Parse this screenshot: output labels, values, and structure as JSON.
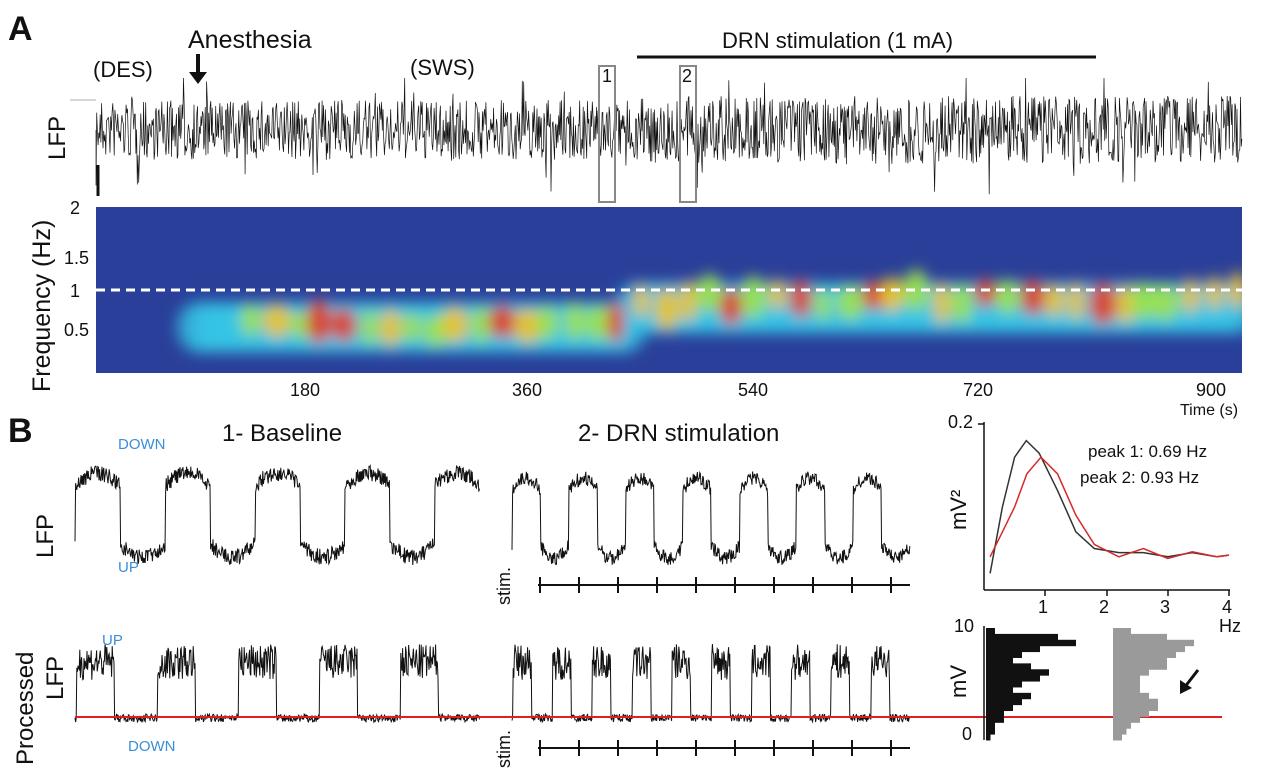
{
  "panel_a": {
    "letter": "A",
    "des_label": "(DES)",
    "anesthesia_label": "Anesthesia",
    "sws_label": "(SWS)",
    "stim_label": "DRN stimulation (1 mA)",
    "box1_label": "1",
    "box2_label": "2",
    "lfp_label": "LFP",
    "freq_label": "Frequency (Hz)",
    "y_ticks": [
      "2",
      "1.5",
      "1",
      "0.5"
    ],
    "x_ticks": [
      "180",
      "360",
      "540",
      "720",
      "900"
    ],
    "x_unit": "Time (s)"
  },
  "panel_b": {
    "letter": "B",
    "baseline_title": "1- Baseline",
    "drn_title": "2- DRN stimulation",
    "lfp_label": "LFP",
    "processed_label": "Processed",
    "processed_lfp_label": "LFP",
    "stim_label": "stim.",
    "down_label": "DOWN",
    "up_label": "UP",
    "spectrum": {
      "ylabel": "mV²",
      "y_ticks": [
        "0.2"
      ],
      "x_ticks": [
        "1",
        "2",
        "3",
        "4"
      ],
      "x_unit": "Hz",
      "peak1": "peak 1: 0.69 Hz",
      "peak2": "peak 2: 0.93 Hz"
    },
    "histogram": {
      "ylabel": "mV",
      "y_ticks": [
        "10",
        "0"
      ]
    }
  },
  "colors": {
    "trace": "#111111",
    "threshold_line": "#e0201e",
    "spectrum_peak2": "#d42a2a",
    "histogram_baseline": "#111111",
    "histogram_drn": "#9a9a9a",
    "box": "#888888",
    "up_down_text": "#3a8fd6"
  },
  "chart_data": [
    {
      "type": "heatmap",
      "title": "",
      "ylabel": "Frequency (Hz)",
      "xlabel": "Time (s)",
      "xlim": [
        0,
        900
      ],
      "ylim": [
        0,
        2
      ],
      "x_ticks": [
        180,
        360,
        540,
        720,
        900
      ],
      "y_ticks": [
        0.5,
        1,
        1.5,
        2
      ],
      "reference_line_hz": 1,
      "stimulation_interval_s": [
        425,
        790
      ]
    },
    {
      "type": "line",
      "title": "",
      "xlabel": "Hz",
      "ylabel": "mV²",
      "xlim": [
        0,
        4
      ],
      "ylim": [
        0,
        0.2
      ],
      "series": [
        {
          "name": "peak 1: 0.69 Hz",
          "x": [
            0.1,
            0.3,
            0.5,
            0.69,
            0.9,
            1.2,
            1.5,
            1.8,
            2.2,
            2.6,
            3,
            3.4,
            3.8,
            4
          ],
          "values": [
            0.02,
            0.1,
            0.16,
            0.18,
            0.165,
            0.12,
            0.07,
            0.05,
            0.045,
            0.045,
            0.04,
            0.045,
            0.04,
            0.042
          ]
        },
        {
          "name": "peak 2: 0.93 Hz",
          "x": [
            0.1,
            0.3,
            0.5,
            0.7,
            0.93,
            1.2,
            1.5,
            1.8,
            2.2,
            2.6,
            3,
            3.4,
            3.8,
            4
          ],
          "values": [
            0.04,
            0.07,
            0.1,
            0.14,
            0.16,
            0.14,
            0.09,
            0.055,
            0.04,
            0.05,
            0.038,
            0.046,
            0.04,
            0.042
          ]
        }
      ]
    },
    {
      "type": "bar",
      "title": "",
      "ylabel": "mV",
      "ylim": [
        0,
        10
      ],
      "series": [
        {
          "name": "",
          "values": [
            1,
            8,
            10,
            6,
            4,
            3,
            5,
            7,
            6,
            4,
            3,
            5,
            4,
            3,
            2,
            2,
            1,
            1,
            0.5
          ]
        },
        {
          "name": "",
          "values": [
            2,
            6,
            9,
            8,
            7,
            6,
            6,
            4,
            3,
            3,
            3,
            4,
            5,
            5,
            4,
            3,
            2,
            1.5,
            1
          ]
        }
      ]
    }
  ]
}
